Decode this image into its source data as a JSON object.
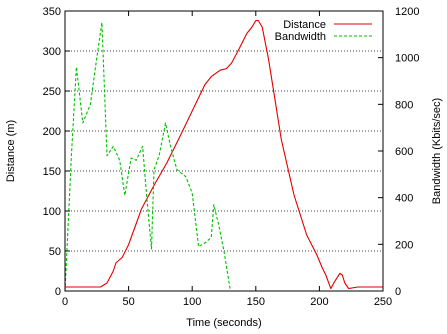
{
  "chart_data": {
    "type": "line",
    "xlabel": "Time (seconds)",
    "ylabel_left": "Distance (m)",
    "ylabel_right": "Bandwidth (Kbits/sec)",
    "xlim": [
      0,
      250
    ],
    "ylim_left": [
      0,
      350
    ],
    "ylim_right": [
      0,
      1200
    ],
    "xticks": [
      0,
      50,
      100,
      150,
      200,
      250
    ],
    "yticks_left": [
      0,
      50,
      100,
      150,
      200,
      250,
      300,
      350
    ],
    "yticks_right": [
      0,
      200,
      400,
      600,
      800,
      1000,
      1200
    ],
    "grid": "horizontal dotted",
    "legend_position": "top-right",
    "series": [
      {
        "name": "Distance",
        "axis": "left",
        "color": "#e00000",
        "style": "solid",
        "x": [
          0,
          28,
          33,
          38,
          40,
          45,
          50,
          55,
          60,
          70,
          80,
          90,
          100,
          110,
          115,
          122,
          127,
          131,
          136,
          143,
          147,
          150,
          152,
          155,
          160,
          165,
          170,
          180,
          190,
          198,
          202,
          205,
          209,
          212,
          216,
          218,
          220,
          223,
          230,
          240,
          250
        ],
        "y": [
          5,
          5,
          10,
          25,
          35,
          42,
          58,
          80,
          102,
          132,
          160,
          192,
          225,
          258,
          268,
          276,
          278,
          285,
          300,
          322,
          330,
          338,
          338,
          330,
          290,
          240,
          190,
          120,
          70,
          45,
          30,
          20,
          3,
          12,
          22,
          20,
          10,
          3,
          5,
          5,
          5
        ]
      },
      {
        "name": "Bandwidth",
        "axis": "right",
        "color": "#00c000",
        "style": "dashed",
        "x": [
          0,
          5,
          9,
          14,
          20,
          25,
          29,
          33,
          38,
          43,
          47,
          52,
          56,
          61,
          64,
          68,
          70,
          74,
          79,
          83,
          88,
          95,
          100,
          105,
          111,
          115,
          117,
          121,
          125,
          130
        ],
        "y": [
          0,
          580,
          960,
          720,
          800,
          1000,
          1150,
          580,
          620,
          560,
          410,
          570,
          560,
          620,
          420,
          180,
          520,
          580,
          720,
          620,
          520,
          490,
          420,
          190,
          210,
          230,
          370,
          280,
          170,
          0
        ]
      }
    ]
  }
}
